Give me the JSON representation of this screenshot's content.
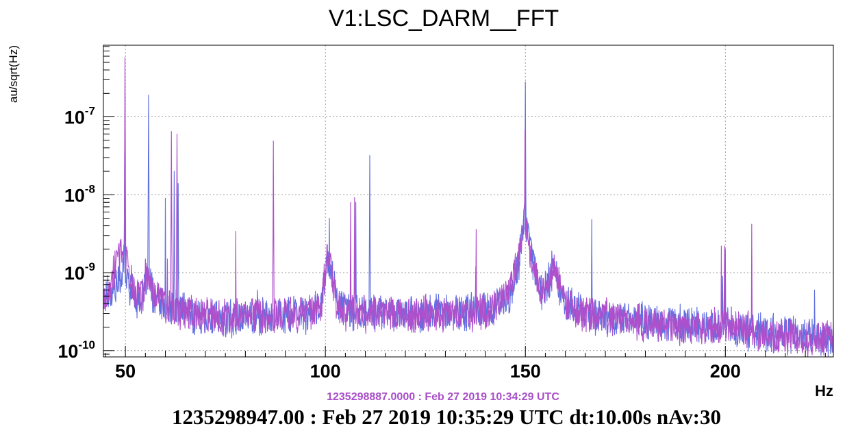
{
  "chart_data": {
    "type": "line",
    "title": "V1:LSC_DARM__FFT",
    "ylabel": "au/sqrt(Hz)",
    "xlabel": "Hz",
    "xlim": [
      44.5,
      227
    ],
    "ylim": [
      8.3e-11,
      8.3e-07
    ],
    "yscale": "log",
    "grid": true,
    "x_ticks": [
      50,
      100,
      150,
      200
    ],
    "y_ticks": [
      {
        "value": 1e-10,
        "base": "10",
        "exp": "-10"
      },
      {
        "value": 1e-09,
        "base": "10",
        "exp": "-9"
      },
      {
        "value": 1e-08,
        "base": "10",
        "exp": "-8"
      },
      {
        "value": 1e-07,
        "base": "10",
        "exp": "-7"
      }
    ],
    "series": [
      {
        "color": "#5f6fe0",
        "baseline": [
          [
            44.5,
            5.2e-10
          ],
          [
            46,
            5.5e-10
          ],
          [
            48,
            7e-10
          ],
          [
            49.5,
            1.1e-09
          ],
          [
            51,
            7e-10
          ],
          [
            53,
            4.5e-10
          ],
          [
            54.5,
            5e-10
          ],
          [
            55.5,
            9e-10
          ],
          [
            57,
            5e-10
          ],
          [
            60,
            3.6e-10
          ],
          [
            65,
            3.2e-10
          ],
          [
            68,
            2.7e-10
          ],
          [
            75,
            2.6e-10
          ],
          [
            85,
            2.8e-10
          ],
          [
            95,
            2.9e-10
          ],
          [
            99,
            3.5e-10
          ],
          [
            100.5,
            1.6e-09
          ],
          [
            101.5,
            1.1e-09
          ],
          [
            103,
            4.2e-10
          ],
          [
            106,
            3.1e-10
          ],
          [
            115,
            3.1e-10
          ],
          [
            125,
            3e-10
          ],
          [
            135,
            3.1e-10
          ],
          [
            142,
            3.3e-10
          ],
          [
            146,
            5e-10
          ],
          [
            148.5,
            1.5e-09
          ],
          [
            149.7,
            5e-09
          ],
          [
            151,
            2.5e-09
          ],
          [
            152.5,
            1e-09
          ],
          [
            154,
            5.8e-10
          ],
          [
            156,
            8e-10
          ],
          [
            157,
            1.3e-09
          ],
          [
            158,
            9e-10
          ],
          [
            160,
            4e-10
          ],
          [
            165,
            3e-10
          ],
          [
            175,
            2.6e-10
          ],
          [
            185,
            2.2e-10
          ],
          [
            195,
            2e-10
          ],
          [
            200,
            2.3e-10
          ],
          [
            205,
            1.8e-10
          ],
          [
            215,
            1.6e-10
          ],
          [
            227,
            1.4e-10
          ]
        ],
        "peaks": [
          [
            49.8,
            3.5e-08
          ],
          [
            55.8,
            1.9e-07
          ],
          [
            60.0,
            9e-09
          ],
          [
            62.2,
            2e-08
          ],
          [
            63.2,
            1.4e-08
          ],
          [
            83.0,
            6e-10
          ],
          [
            101.0,
            5e-09
          ],
          [
            107.6,
            8e-09
          ],
          [
            111.1,
            3.2e-08
          ],
          [
            137.6,
            1.2e-09
          ],
          [
            150.0,
            2.8e-07
          ],
          [
            157.0,
            1.5e-09
          ],
          [
            166.6,
            4.8e-09
          ],
          [
            199.3,
            9e-10
          ],
          [
            200.0,
            2e-09
          ],
          [
            222.3,
            6e-10
          ]
        ]
      },
      {
        "color": "#b04fcb",
        "baseline": [
          [
            44.5,
            4.8e-10
          ],
          [
            46,
            6e-10
          ],
          [
            48,
            1.4e-09
          ],
          [
            49.5,
            2.4e-09
          ],
          [
            51,
            9e-10
          ],
          [
            53,
            4.6e-10
          ],
          [
            54.5,
            5.5e-10
          ],
          [
            55.5,
            1.1e-09
          ],
          [
            57,
            5.5e-10
          ],
          [
            60,
            3.7e-10
          ],
          [
            65,
            3.3e-10
          ],
          [
            68,
            2.8e-10
          ],
          [
            75,
            2.7e-10
          ],
          [
            85,
            2.9e-10
          ],
          [
            95,
            3e-10
          ],
          [
            99,
            3.6e-10
          ],
          [
            100.5,
            1.9e-09
          ],
          [
            101.5,
            1e-09
          ],
          [
            103,
            4e-10
          ],
          [
            106,
            3e-10
          ],
          [
            115,
            3e-10
          ],
          [
            125,
            3e-10
          ],
          [
            135,
            3e-10
          ],
          [
            142,
            3.4e-10
          ],
          [
            146,
            5.5e-10
          ],
          [
            148.5,
            1.8e-09
          ],
          [
            149.7,
            5.5e-09
          ],
          [
            151,
            2.3e-09
          ],
          [
            152.5,
            9.5e-10
          ],
          [
            154,
            5.5e-10
          ],
          [
            156,
            7.5e-10
          ],
          [
            157,
            1.2e-09
          ],
          [
            158,
            8.5e-10
          ],
          [
            160,
            3.8e-10
          ],
          [
            165,
            2.9e-10
          ],
          [
            175,
            2.5e-10
          ],
          [
            185,
            2.1e-10
          ],
          [
            195,
            1.9e-10
          ],
          [
            200,
            2.2e-10
          ],
          [
            205,
            1.8e-10
          ],
          [
            215,
            1.5e-10
          ],
          [
            227,
            1.4e-10
          ]
        ],
        "peaks": [
          [
            49.9,
            5.8e-07
          ],
          [
            55.0,
            1.5e-09
          ],
          [
            60.5,
            1.5e-09
          ],
          [
            61.5,
            6.5e-08
          ],
          [
            62.9,
            6e-08
          ],
          [
            77.6,
            3.4e-09
          ],
          [
            87.0,
            4.9e-08
          ],
          [
            106.3,
            8e-09
          ],
          [
            107.3,
            9.2e-09
          ],
          [
            137.7,
            3.6e-09
          ],
          [
            149.9,
            6.8e-08
          ],
          [
            199.0,
            2.2e-09
          ],
          [
            199.8,
            2.2e-09
          ],
          [
            206.6,
            4.2e-09
          ]
        ]
      }
    ]
  },
  "reference_label": "1235298887.0000 : Feb 27 2019 10:34:29 UTC",
  "footer": "1235298947.00 : Feb 27 2019 10:35:29 UTC dt:10.00s nAv:30"
}
